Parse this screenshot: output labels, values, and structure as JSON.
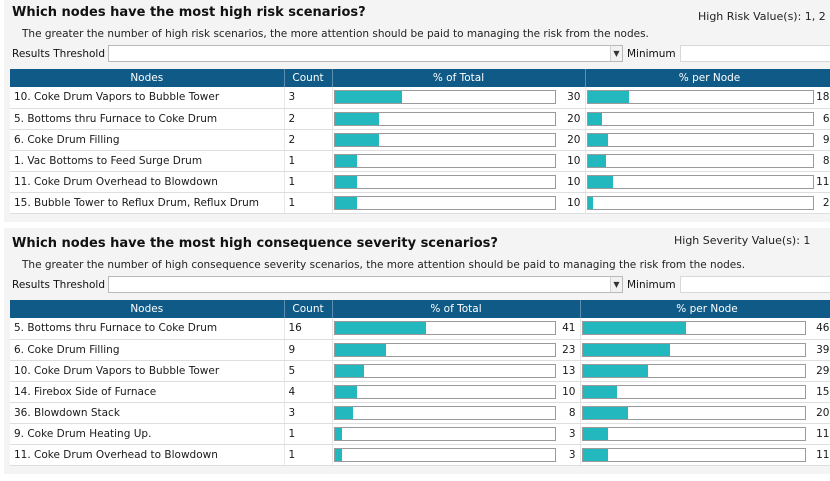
{
  "risk": {
    "title": "Which nodes have the most high risk scenarios?",
    "value_label": "High Risk Value(s): 1, 2",
    "description": "The greater the number of high risk scenarios, the more attention should be paid to managing the risk from the nodes.",
    "threshold_label": "Results Threshold",
    "threshold_value": "",
    "minimum_label": "Minimum",
    "columns": [
      "Nodes",
      "Count",
      "% of Total",
      "% per Node"
    ],
    "rows": [
      {
        "node": "10. Coke Drum Vapors to Bubble Tower",
        "count": "3",
        "total": 30,
        "per_node": 18
      },
      {
        "node": "5. Bottoms thru Furnace to Coke Drum",
        "count": "2",
        "total": 20,
        "per_node": 6
      },
      {
        "node": "6. Coke Drum Filling",
        "count": "2",
        "total": 20,
        "per_node": 9
      },
      {
        "node": "1. Vac Bottoms to Feed Surge Drum",
        "count": "1",
        "total": 10,
        "per_node": 8
      },
      {
        "node": "11. Coke Drum Overhead to Blowdown",
        "count": "1",
        "total": 10,
        "per_node": 11
      },
      {
        "node": "15. Bubble Tower  to Reflux Drum, Reflux Drum",
        "count": "1",
        "total": 10,
        "per_node": 2
      }
    ]
  },
  "severity": {
    "title": "Which nodes have the most high consequence severity scenarios?",
    "value_label": "High Severity Value(s): 1",
    "description": "The greater the number of high consequence severity scenarios, the more attention should be paid to managing the risk from the nodes.",
    "threshold_label": "Results Threshold",
    "threshold_value": "",
    "minimum_label": "Minimum",
    "columns": [
      "Nodes",
      "Count",
      "% of Total",
      "% per Node"
    ],
    "rows": [
      {
        "node": "5. Bottoms thru Furnace to Coke Drum",
        "count": "16",
        "total": 41,
        "per_node": 46
      },
      {
        "node": "6. Coke Drum Filling",
        "count": "9",
        "total": 23,
        "per_node": 39
      },
      {
        "node": "10. Coke Drum Vapors to Bubble Tower",
        "count": "5",
        "total": 13,
        "per_node": 29
      },
      {
        "node": "14. Firebox Side of Furnace",
        "count": "4",
        "total": 10,
        "per_node": 15
      },
      {
        "node": "36. Blowdown Stack",
        "count": "3",
        "total": 8,
        "per_node": 20
      },
      {
        "node": "9. Coke Drum Heating Up.",
        "count": "1",
        "total": 3,
        "per_node": 11
      },
      {
        "node": "11. Coke Drum Overhead to Blowdown",
        "count": "1",
        "total": 3,
        "per_node": 11
      }
    ]
  },
  "colors": {
    "header": "#0f5a86",
    "bar": "#22b8bd"
  },
  "icons": {
    "dropdown": "chevron-down-icon"
  }
}
